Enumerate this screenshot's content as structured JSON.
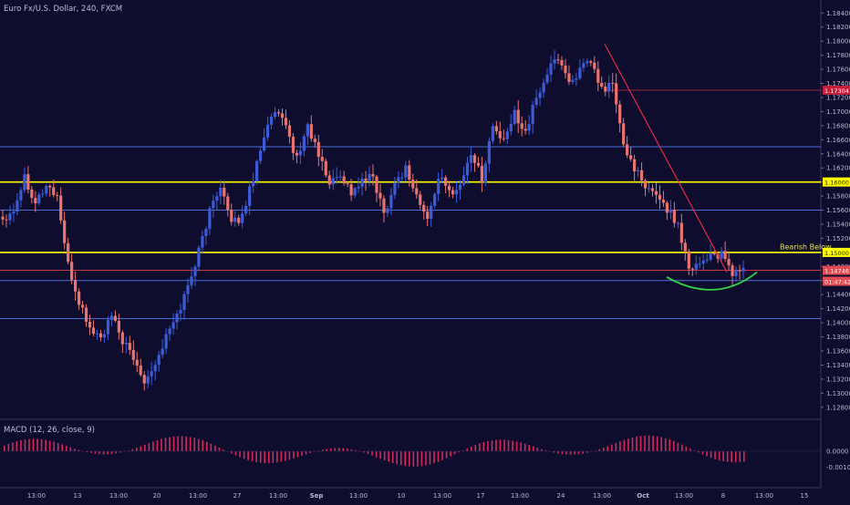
{
  "header": {
    "title": "Euro Fx/U.S. Dollar, 240, FXCM"
  },
  "macd": {
    "title": "MACD (12, 26, close, 9)",
    "ticks": [
      "0.0000",
      "-0.0010"
    ]
  },
  "colors": {
    "background": "#0f0d2e",
    "up": "#3d5bd6",
    "down": "#e8736f",
    "trend": "#e62a43",
    "support_resistance": "#ffff00",
    "level": "#4a6fd8",
    "curve": "#2fd64a",
    "macd": "#d02a5a"
  },
  "chart_data": {
    "type": "candlestick",
    "title": "Euro Fx/U.S. Dollar, 240, FXCM",
    "ylim": [
      1.1272,
      1.1852
    ],
    "y_ticks": [
      "1.18400",
      "1.18200",
      "1.18000",
      "1.17800",
      "1.17600",
      "1.17400",
      "1.17200",
      "1.17000",
      "1.16800",
      "1.16600",
      "1.16400",
      "1.16200",
      "1.16000",
      "1.15800",
      "1.15600",
      "1.15400",
      "1.15200",
      "1.15000",
      "1.14800",
      "1.14600",
      "1.14400",
      "1.14200",
      "1.14000",
      "1.13800",
      "1.13600",
      "1.13400",
      "1.13200",
      "1.13000",
      "1.12800"
    ],
    "x_ticks": [
      "13:00",
      "13",
      "13:00",
      "20",
      "13:00",
      "27",
      "13:00",
      "Sep",
      "13:00",
      "10",
      "13:00",
      "17",
      "13:00",
      "24",
      "13:00",
      "Oct",
      "13:00",
      "8",
      "13:00",
      "15"
    ],
    "keypoints_close": [
      1.1548,
      1.1562,
      1.1608,
      1.1572,
      1.1595,
      1.158,
      1.148,
      1.143,
      1.1392,
      1.1378,
      1.1408,
      1.1375,
      1.1348,
      1.132,
      1.1342,
      1.138,
      1.141,
      1.1452,
      1.1502,
      1.1558,
      1.1598,
      1.1538,
      1.1552,
      1.1608,
      1.1668,
      1.1698,
      1.1678,
      1.1632,
      1.168,
      1.1638,
      1.1598,
      1.1612,
      1.1585,
      1.16,
      1.1608,
      1.1555,
      1.1598,
      1.162,
      1.158,
      1.1545,
      1.1608,
      1.1585,
      1.1595,
      1.1642,
      1.1605,
      1.168,
      1.1655,
      1.1698,
      1.1672,
      1.1718,
      1.1755,
      1.1778,
      1.1742,
      1.1758,
      1.177,
      1.173,
      1.174,
      1.165,
      1.1622,
      1.1588,
      1.1585,
      1.1562,
      1.154,
      1.148,
      1.1485,
      1.1498,
      1.1495,
      1.147,
      1.1478
    ],
    "horizontal_levels": [
      {
        "price": 1.16,
        "label": "1.16000",
        "role": "resistance"
      },
      {
        "price": 1.15,
        "label": "1.15000",
        "role": "support"
      },
      {
        "price": 1.17304,
        "label": "1.17304",
        "role": "marker"
      },
      {
        "price": 1.14746,
        "label": "1.14746",
        "role": "current price"
      },
      {
        "price": 1.148,
        "label": "01:47:42",
        "role": "bar countdown"
      },
      {
        "price": 1.165,
        "label": "",
        "role": "level"
      },
      {
        "price": 1.156,
        "label": "",
        "role": "level"
      },
      {
        "price": 1.146,
        "label": "",
        "role": "level"
      },
      {
        "price": 1.1406,
        "label": "",
        "role": "level"
      }
    ],
    "annotations": [
      "Bearish Below"
    ]
  }
}
